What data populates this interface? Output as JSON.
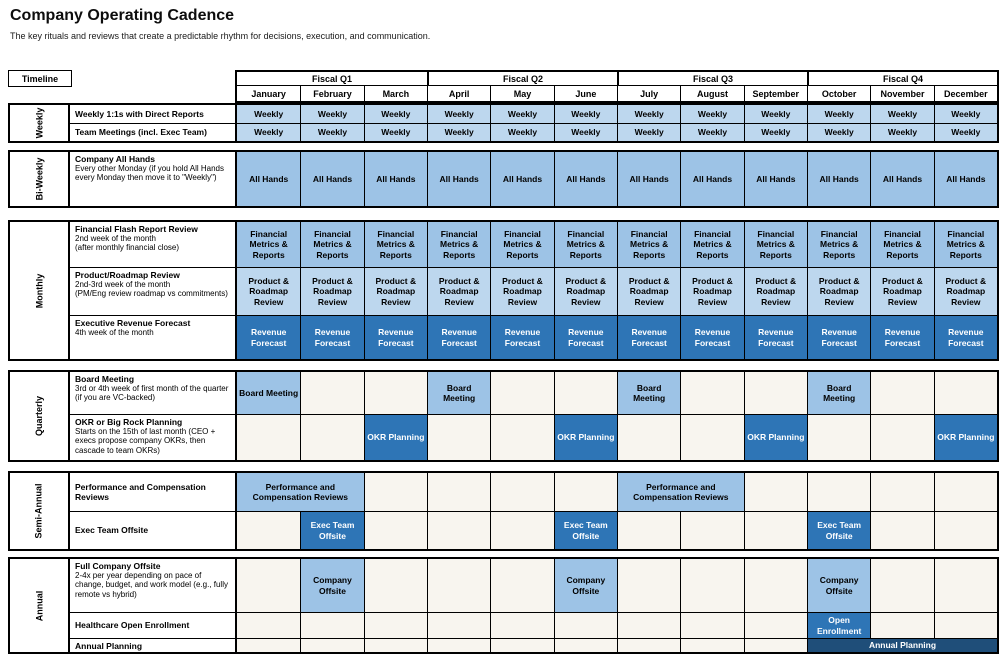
{
  "page": {
    "title": "Company Operating Cadence",
    "subtitle": "The key rituals and reviews that create a predictable rhythm for decisions, execution, and communication.",
    "timeline_label": "Timeline"
  },
  "colors": {
    "light": "#BDD7EE",
    "medium": "#9DC3E6",
    "dark": "#2E75B6",
    "navy": "#1F4E79",
    "empty_cell": "#F8F5EF"
  },
  "header": {
    "quarters": [
      "Fiscal Q1",
      "Fiscal Q2",
      "Fiscal Q3",
      "Fiscal Q4"
    ],
    "months": [
      "January",
      "February",
      "March",
      "April",
      "May",
      "June",
      "July",
      "August",
      "September",
      "October",
      "November",
      "December"
    ]
  },
  "sections": [
    {
      "group": "Weekly",
      "rows": [
        {
          "title": "Weekly 1:1s with Direct Reports",
          "details": [],
          "cells_all": {
            "text": "Weekly",
            "tone": "light"
          }
        },
        {
          "title": "Team Meetings (incl. Exec Team)",
          "details": [],
          "cells_all": {
            "text": "Weekly",
            "tone": "light"
          }
        }
      ]
    },
    {
      "group": "Bi-Weekly",
      "rows": [
        {
          "title": "Company All Hands",
          "details": [
            "Every other Monday (if you hold All Hands every Monday then move it to \"Weekly\")"
          ],
          "cells_all": {
            "text": "All Hands",
            "tone": "medium"
          }
        }
      ]
    },
    {
      "group": "Monthly",
      "rows": [
        {
          "title": "Financial Flash Report Review",
          "details": [
            "2nd week of the month",
            "(after monthly financial close)"
          ],
          "cells_all": {
            "text": "Financial Metrics & Reports",
            "tone": "medium"
          }
        },
        {
          "title": "Product/Roadmap Review",
          "details": [
            "2nd-3rd week of the month",
            "(PM/Eng review roadmap vs commitments)"
          ],
          "cells_all": {
            "text": "Product & Roadmap Review",
            "tone": "light"
          }
        },
        {
          "title": "Executive Revenue Forecast",
          "details": [
            "4th week of the month"
          ],
          "cells_all": {
            "text": "Revenue Forecast",
            "tone": "dark"
          }
        }
      ]
    },
    {
      "group": "Quarterly",
      "rows": [
        {
          "title": "Board Meeting",
          "details": [
            "3rd or 4th week of first month of the quarter (if you are VC-backed)"
          ],
          "cells": [
            {
              "col": 1,
              "span": 1,
              "text": "Board Meeting",
              "tone": "medium"
            },
            {
              "col": 4,
              "span": 1,
              "text": "Board Meeting",
              "tone": "medium"
            },
            {
              "col": 7,
              "span": 1,
              "text": "Board Meeting",
              "tone": "medium"
            },
            {
              "col": 10,
              "span": 1,
              "text": "Board Meeting",
              "tone": "medium"
            }
          ]
        },
        {
          "title": "OKR or Big Rock Planning",
          "details": [
            "Starts on the 15th of last month (CEO + execs propose company OKRs, then cascade to team OKRs)"
          ],
          "cells": [
            {
              "col": 3,
              "span": 1,
              "text": "OKR Planning",
              "tone": "dark"
            },
            {
              "col": 6,
              "span": 1,
              "text": "OKR Planning",
              "tone": "dark"
            },
            {
              "col": 9,
              "span": 1,
              "text": "OKR Planning",
              "tone": "dark"
            },
            {
              "col": 12,
              "span": 1,
              "text": "OKR Planning",
              "tone": "dark"
            }
          ]
        }
      ]
    },
    {
      "group": "Semi-Annual",
      "rows": [
        {
          "title": "Performance and Compensation Reviews",
          "details": [],
          "cells": [
            {
              "col": 1,
              "span": 2,
              "text": "Performance and Compensation Reviews",
              "tone": "medium"
            },
            {
              "col": 7,
              "span": 2,
              "text": "Performance and Compensation Reviews",
              "tone": "medium"
            }
          ]
        },
        {
          "title": "Exec Team Offsite",
          "details": [],
          "cells": [
            {
              "col": 2,
              "span": 1,
              "text": "Exec Team Offsite",
              "tone": "dark"
            },
            {
              "col": 6,
              "span": 1,
              "text": "Exec Team Offsite",
              "tone": "dark"
            },
            {
              "col": 10,
              "span": 1,
              "text": "Exec Team Offsite",
              "tone": "dark"
            }
          ]
        }
      ]
    },
    {
      "group": "Annual",
      "rows": [
        {
          "title": "Full Company Offsite",
          "details": [
            "2-4x per year depending on pace of change, budget, and work model (e.g., fully remote vs hybrid)"
          ],
          "cells": [
            {
              "col": 2,
              "span": 1,
              "text": "Company Offsite",
              "tone": "medium"
            },
            {
              "col": 6,
              "span": 1,
              "text": "Company Offsite",
              "tone": "medium"
            },
            {
              "col": 10,
              "span": 1,
              "text": "Company Offsite",
              "tone": "medium"
            }
          ]
        },
        {
          "title": "Healthcare Open Enrollment",
          "details": [],
          "cells": [
            {
              "col": 10,
              "span": 1,
              "text": "Open Enrollment",
              "tone": "dark"
            }
          ]
        },
        {
          "title": "Annual Planning",
          "details": [],
          "cells": [
            {
              "col": 10,
              "span": 3,
              "text": "Annual Planning",
              "tone": "navy"
            }
          ]
        }
      ]
    }
  ]
}
